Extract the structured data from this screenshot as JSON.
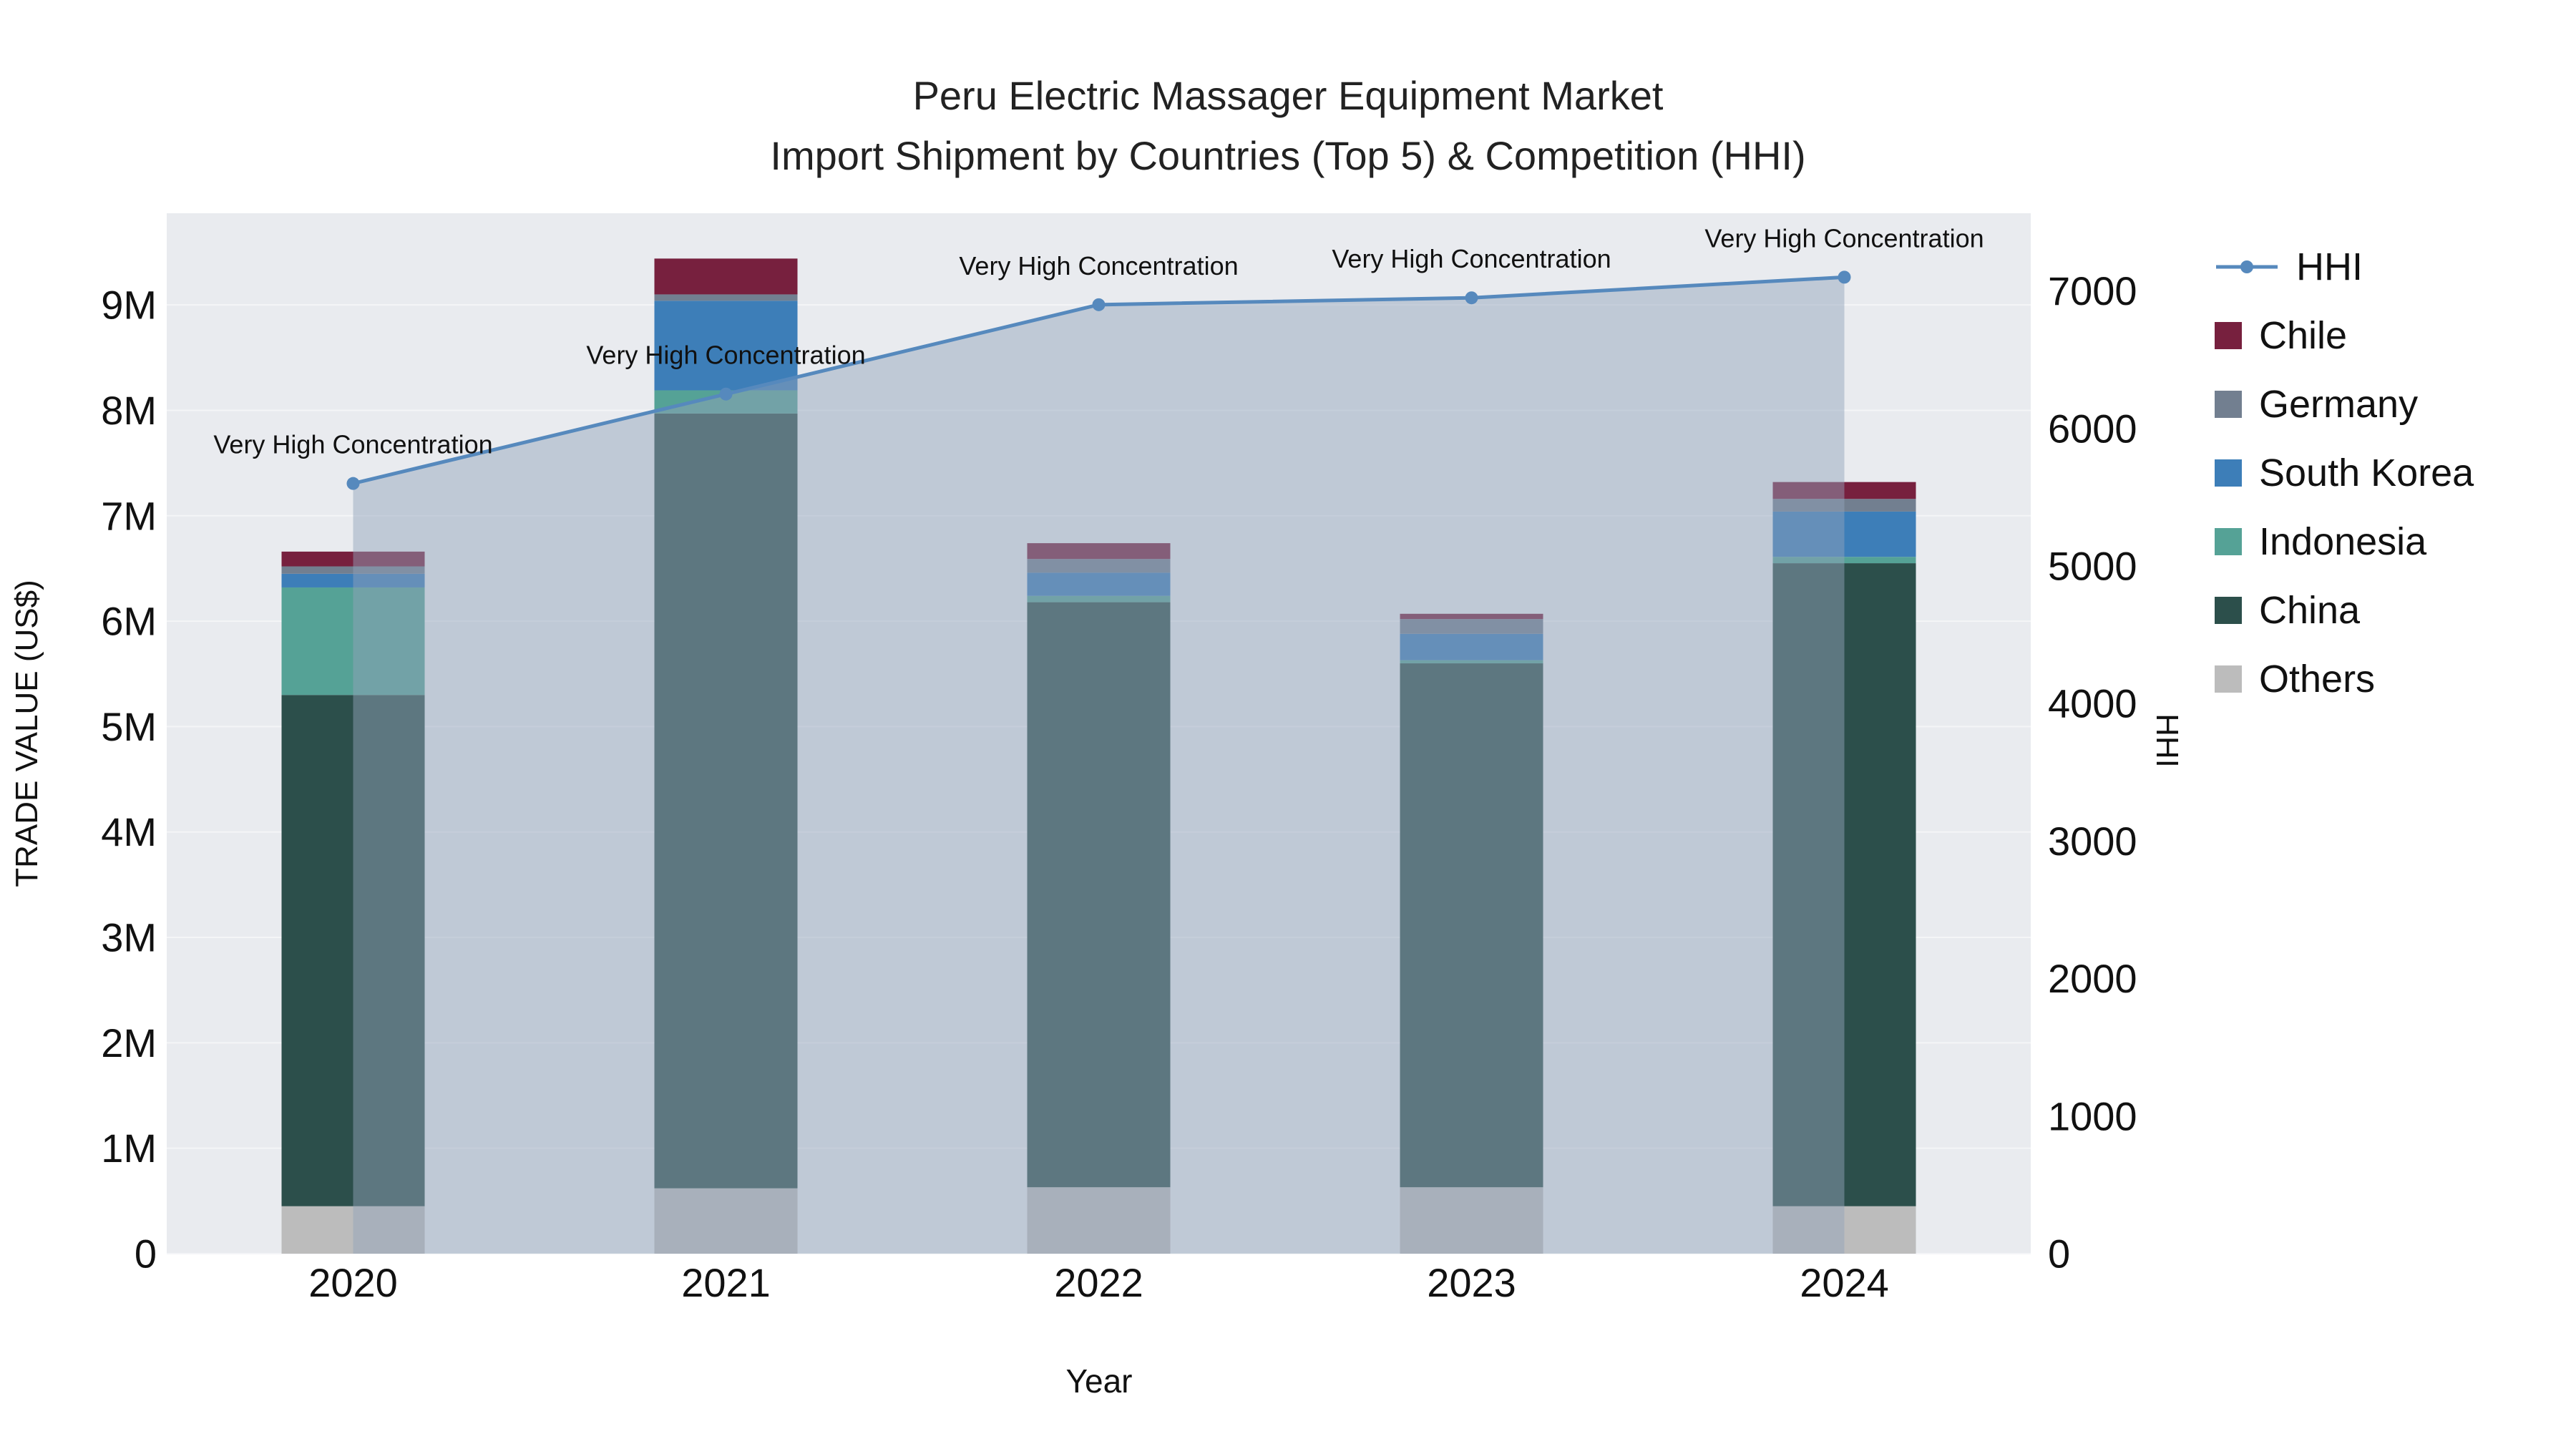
{
  "chart_data": {
    "type": "bar+line",
    "title": "Peru Electric Massager Equipment Market",
    "subtitle": "Import Shipment by Countries (Top 5) & Competition (HHI)",
    "xlabel": "Year",
    "ylabel_left": "TRADE VALUE (US$)",
    "ylabel_right": "HHI",
    "categories": [
      "2020",
      "2021",
      "2022",
      "2023",
      "2024"
    ],
    "bar_series": [
      {
        "name": "Others",
        "color": "#bcbcbc",
        "values": [
          450000,
          620000,
          630000,
          630000,
          450000
        ]
      },
      {
        "name": "China",
        "color": "#2c4f4b",
        "values": [
          4850000,
          7350000,
          5550000,
          4970000,
          6100000
        ]
      },
      {
        "name": "Indonesia",
        "color": "#55a296",
        "values": [
          1020000,
          220000,
          60000,
          30000,
          60000
        ]
      },
      {
        "name": "South Korea",
        "color": "#3d7eb8",
        "values": [
          130000,
          850000,
          220000,
          250000,
          430000
        ]
      },
      {
        "name": "Germany",
        "color": "#727f90",
        "values": [
          70000,
          60000,
          130000,
          140000,
          120000
        ]
      },
      {
        "name": "Chile",
        "color": "#77203e",
        "values": [
          140000,
          340000,
          150000,
          50000,
          160000
        ]
      }
    ],
    "line_series": {
      "name": "HHI",
      "color": "#5689bd",
      "fill_color": "rgba(146,163,186,0.48)",
      "values": [
        5600,
        6250,
        6900,
        6950,
        7100
      ]
    },
    "annotations": [
      "Very High Concentration",
      "Very High Concentration",
      "Very High Concentration",
      "Very High Concentration",
      "Very High Concentration"
    ],
    "y_left": {
      "ticks": [
        "0",
        "1M",
        "2M",
        "3M",
        "4M",
        "5M",
        "6M",
        "7M",
        "8M",
        "9M"
      ],
      "tick_step": 1000000,
      "max": 9870000
    },
    "y_right": {
      "ticks": [
        "0",
        "1000",
        "2000",
        "3000",
        "4000",
        "5000",
        "6000",
        "7000"
      ],
      "tick_step": 1000,
      "max": 7565
    },
    "legend": [
      {
        "name": "HHI",
        "type": "line",
        "color": "#5689bd"
      },
      {
        "name": "Chile",
        "type": "square",
        "color": "#77203e"
      },
      {
        "name": "Germany",
        "type": "square",
        "color": "#727f90"
      },
      {
        "name": "South Korea",
        "type": "square",
        "color": "#3d7eb8"
      },
      {
        "name": "Indonesia",
        "type": "square",
        "color": "#55a296"
      },
      {
        "name": "China",
        "type": "square",
        "color": "#2c4f4b"
      },
      {
        "name": "Others",
        "type": "square",
        "color": "#bcbcbc"
      }
    ],
    "colors": {
      "plot_background": "#e9ebef",
      "gridline": "#f4f5f7",
      "text": "#111111"
    }
  }
}
